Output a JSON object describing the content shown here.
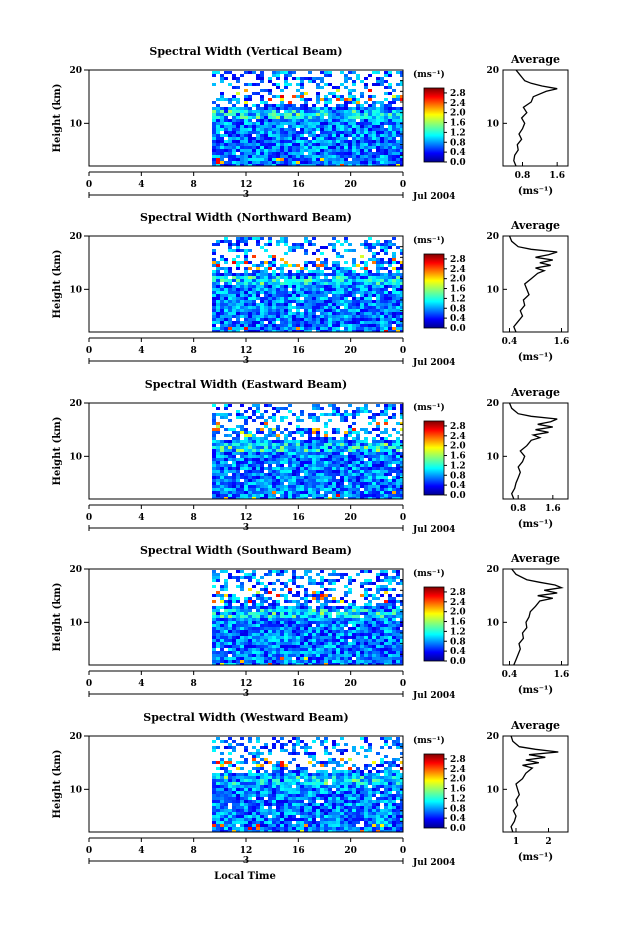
{
  "chart_data": [
    {
      "type": "heatmap",
      "title": "Spectral Width (Vertical Beam)",
      "ylabel": "Height (km)",
      "xlim": [
        0,
        24
      ],
      "x_ticks": [
        "0",
        "4",
        "8",
        "12",
        "16",
        "20",
        "0"
      ],
      "ylim": [
        2,
        20
      ],
      "y_ticks": [
        "20",
        "10"
      ],
      "date_marker": "3",
      "date_label": "Jul 2004",
      "colorbar": {
        "unit": "(ms⁻¹)",
        "ticks": [
          "2.8",
          "2.4",
          "2.0",
          "1.6",
          "1.2",
          "0.8",
          "0.4",
          "0.0"
        ],
        "range": [
          0,
          3.0
        ]
      },
      "data_start_hour": 9.4,
      "profile": {
        "title": "Average",
        "xlabel": "(ms⁻¹)",
        "x_ticks": [
          "0.8",
          "1.6"
        ],
        "xlim": [
          0.35,
          1.85
        ],
        "y_ticks": [
          "20",
          "10"
        ],
        "heights": [
          2,
          3,
          4,
          5,
          6,
          7,
          8,
          9,
          10,
          11,
          12,
          13,
          14,
          15,
          16,
          16.5,
          17,
          17.5,
          18,
          18.5,
          19,
          19.5,
          20
        ],
        "values": [
          0.65,
          0.6,
          0.62,
          0.7,
          0.68,
          0.78,
          0.72,
          0.8,
          0.85,
          0.78,
          0.9,
          0.82,
          1.0,
          1.05,
          1.35,
          1.6,
          1.25,
          1.0,
          0.85,
          0.8,
          0.75,
          0.7,
          0.65
        ]
      }
    },
    {
      "type": "heatmap",
      "title": "Spectral Width (Northward Beam)",
      "ylabel": "Height (km)",
      "xlim": [
        0,
        24
      ],
      "x_ticks": [
        "0",
        "4",
        "8",
        "12",
        "16",
        "20",
        "0"
      ],
      "ylim": [
        2,
        20
      ],
      "y_ticks": [
        "20",
        "10"
      ],
      "date_marker": "3",
      "date_label": "Jul 2004",
      "colorbar": {
        "unit": "(ms⁻¹)",
        "ticks": [
          "2.8",
          "2.4",
          "2.0",
          "1.6",
          "1.2",
          "0.8",
          "0.4",
          "0.0"
        ],
        "range": [
          0,
          3.0
        ]
      },
      "data_start_hour": 9.4,
      "profile": {
        "title": "Average",
        "xlabel": "(ms⁻¹)",
        "x_ticks": [
          "0.4",
          "1.6"
        ],
        "xlim": [
          0.25,
          1.75
        ],
        "y_ticks": [
          "20",
          "10"
        ],
        "heights": [
          2,
          3,
          4,
          5,
          6,
          7,
          8,
          9,
          10,
          11,
          12,
          13,
          13.5,
          14,
          14.5,
          15,
          15.5,
          16,
          16.5,
          17,
          17.5,
          18,
          19,
          20
        ],
        "values": [
          0.55,
          0.5,
          0.6,
          0.7,
          0.65,
          0.75,
          0.72,
          0.85,
          0.8,
          0.75,
          0.9,
          1.05,
          1.2,
          1.0,
          1.35,
          1.1,
          1.4,
          1.0,
          1.3,
          1.5,
          0.9,
          0.6,
          0.45,
          0.4
        ]
      }
    },
    {
      "type": "heatmap",
      "title": "Spectral Width (Eastward Beam)",
      "ylabel": "Height (km)",
      "xlim": [
        0,
        24
      ],
      "x_ticks": [
        "0",
        "4",
        "8",
        "12",
        "16",
        "20",
        "0"
      ],
      "ylim": [
        2,
        20
      ],
      "y_ticks": [
        "20",
        "10"
      ],
      "date_marker": "3",
      "date_label": "Jul 2004",
      "colorbar": {
        "unit": "(ms⁻¹)",
        "ticks": [
          "2.8",
          "2.4",
          "2.0",
          "1.6",
          "1.2",
          "0.8",
          "0.4",
          "0.0"
        ],
        "range": [
          0,
          3.0
        ]
      },
      "data_start_hour": 9.4,
      "profile": {
        "title": "Average",
        "xlabel": "(ms⁻¹)",
        "x_ticks": [
          "0.8",
          "1.6"
        ],
        "xlim": [
          0.45,
          1.95
        ],
        "y_ticks": [
          "20",
          "10"
        ],
        "heights": [
          2,
          3,
          4,
          5,
          6,
          7,
          8,
          9,
          10,
          11,
          12,
          13,
          13.5,
          14,
          14.5,
          15,
          15.5,
          16,
          16.5,
          17,
          17.5,
          18,
          19,
          20
        ],
        "values": [
          0.7,
          0.65,
          0.72,
          0.75,
          0.8,
          0.85,
          0.8,
          0.9,
          0.95,
          0.85,
          1.0,
          1.1,
          1.3,
          1.15,
          1.5,
          1.2,
          1.6,
          1.25,
          1.55,
          1.7,
          1.1,
          0.8,
          0.65,
          0.6
        ]
      }
    },
    {
      "type": "heatmap",
      "title": "Spectral Width (Southward Beam)",
      "ylabel": "Height (km)",
      "xlim": [
        0,
        24
      ],
      "x_ticks": [
        "0",
        "4",
        "8",
        "12",
        "16",
        "20",
        "0"
      ],
      "ylim": [
        2,
        20
      ],
      "y_ticks": [
        "20",
        "10"
      ],
      "date_marker": "3",
      "date_label": "Jul 2004",
      "colorbar": {
        "unit": "(ms⁻¹)",
        "ticks": [
          "2.8",
          "2.4",
          "2.0",
          "1.6",
          "1.2",
          "0.8",
          "0.4",
          "0.0"
        ],
        "range": [
          0,
          3.0
        ]
      },
      "data_start_hour": 9.4,
      "profile": {
        "title": "Average",
        "xlabel": "(ms⁻¹)",
        "x_ticks": [
          "0.4",
          "1.6"
        ],
        "xlim": [
          0.25,
          1.75
        ],
        "y_ticks": [
          "20",
          "10"
        ],
        "heights": [
          2,
          3,
          4,
          5,
          6,
          7,
          8,
          9,
          10,
          11,
          12,
          13,
          14,
          14.5,
          15,
          15.5,
          16,
          16.5,
          17,
          17.5,
          18,
          19,
          20
        ],
        "values": [
          0.5,
          0.55,
          0.6,
          0.65,
          0.62,
          0.72,
          0.7,
          0.8,
          0.78,
          0.85,
          0.88,
          1.0,
          1.1,
          1.4,
          1.05,
          1.5,
          1.2,
          1.6,
          1.45,
          1.1,
          0.8,
          0.55,
          0.45
        ]
      }
    },
    {
      "type": "heatmap",
      "title": "Spectral Width (Westward Beam)",
      "ylabel": "Height (km)",
      "xlim": [
        0,
        24
      ],
      "x_ticks": [
        "0",
        "4",
        "8",
        "12",
        "16",
        "20",
        "0"
      ],
      "ylim": [
        2,
        20
      ],
      "y_ticks": [
        "20",
        "10"
      ],
      "date_marker": "3",
      "date_label": "Jul 2004",
      "xlabel": "Local Time",
      "colorbar": {
        "unit": "(ms⁻¹)",
        "ticks": [
          "2.8",
          "2.4",
          "2.0",
          "1.6",
          "1.2",
          "0.8",
          "0.4",
          "0.0"
        ],
        "range": [
          0,
          3.0
        ]
      },
      "data_start_hour": 9.4,
      "profile": {
        "title": "Average",
        "xlabel": "(ms⁻¹)",
        "x_ticks": [
          "1",
          "2"
        ],
        "xlim": [
          0.6,
          2.6
        ],
        "y_ticks": [
          "20",
          "10"
        ],
        "heights": [
          2,
          3,
          4,
          5,
          6,
          7,
          8,
          9,
          10,
          11,
          12,
          13,
          14,
          14.5,
          15,
          15.5,
          16,
          16.5,
          17,
          17.5,
          18,
          19,
          20
        ],
        "values": [
          0.9,
          0.85,
          0.95,
          1.0,
          0.92,
          1.05,
          1.0,
          1.1,
          1.05,
          1.0,
          1.2,
          1.3,
          1.5,
          1.2,
          1.7,
          1.3,
          1.9,
          1.4,
          2.3,
          1.6,
          1.1,
          0.9,
          0.85
        ]
      }
    }
  ]
}
